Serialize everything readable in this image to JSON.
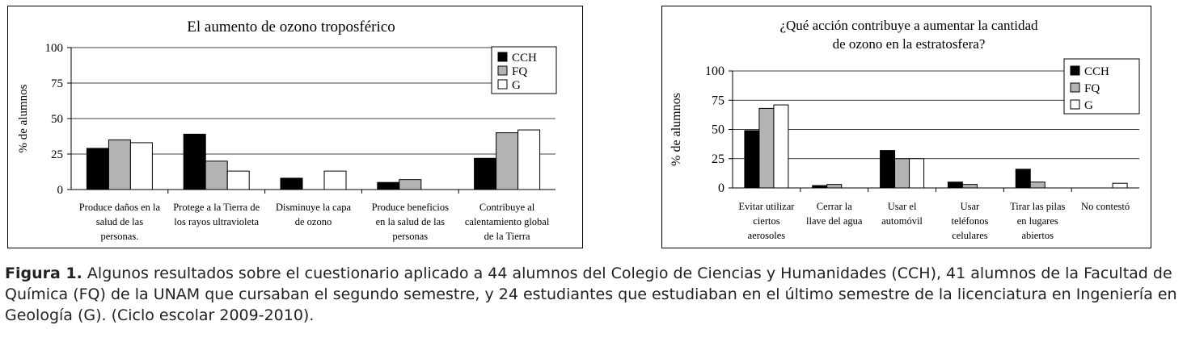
{
  "chart_data": [
    {
      "type": "bar",
      "title": "El aumento de ozono troposférico",
      "ylabel": "% de alumnos",
      "xlabel": "",
      "ylim": [
        0,
        100
      ],
      "yticks": [
        "0",
        "25",
        "50",
        "75",
        "100"
      ],
      "grid": true,
      "legend_position": "top-right",
      "categories": [
        [
          "Produce daños en la",
          "salud de las",
          "personas."
        ],
        [
          "Protege a la Tierra de",
          "los rayos ultravioleta"
        ],
        [
          "Disminuye la capa",
          "de ozono"
        ],
        [
          "Produce beneficios",
          "en la salud de las",
          "personas"
        ],
        [
          "Contribuye al",
          "calentamiento global",
          "de la Tierra"
        ]
      ],
      "series": [
        {
          "name": "CCH",
          "color": "#000000",
          "values": [
            29,
            39,
            8,
            5,
            22
          ]
        },
        {
          "name": "FQ",
          "color": "#b3b3b3",
          "values": [
            35,
            20,
            0,
            7,
            40
          ]
        },
        {
          "name": "G",
          "color": "#ffffff",
          "values": [
            33,
            13,
            13,
            0,
            42
          ]
        }
      ]
    },
    {
      "type": "bar",
      "title": [
        "¿Qué acción contribuye a aumentar la cantidad",
        "de ozono en la estratosfera?"
      ],
      "ylabel": "% de alumnos",
      "xlabel": "",
      "ylim": [
        0,
        100
      ],
      "yticks": [
        "0",
        "25",
        "50",
        "75",
        "100"
      ],
      "grid": true,
      "legend_position": "top-right",
      "categories": [
        [
          "Evitar utilizar",
          "ciertos",
          "aerosoles"
        ],
        [
          "Cerrar la",
          "llave del agua"
        ],
        [
          "Usar el",
          "automóvil"
        ],
        [
          "Usar",
          "teléfonos",
          "celulares"
        ],
        [
          "Tirar las pilas",
          "en lugares",
          "abiertos"
        ],
        [
          "No contestó"
        ]
      ],
      "series": [
        {
          "name": "CCH",
          "color": "#000000",
          "values": [
            49,
            2,
            32,
            5,
            16,
            0
          ]
        },
        {
          "name": "FQ",
          "color": "#b3b3b3",
          "values": [
            68,
            3,
            25,
            3,
            5,
            0
          ]
        },
        {
          "name": "G",
          "color": "#ffffff",
          "values": [
            71,
            0,
            25,
            0,
            0,
            4
          ]
        }
      ]
    }
  ],
  "caption": {
    "label": "Figura 1.",
    "text": " Algunos resultados sobre el cuestionario aplicado a 44 alumnos del Colegio de Ciencias y Humanidades (CCH), 41 alumnos de la Facultad de Química (FQ) de la UNAM que cursaban el segundo semestre, y 24 estudiantes que estudiaban en el último semestre de la licenciatura en Ingeniería en Geología (G). (Ciclo escolar 2009-2010)."
  }
}
